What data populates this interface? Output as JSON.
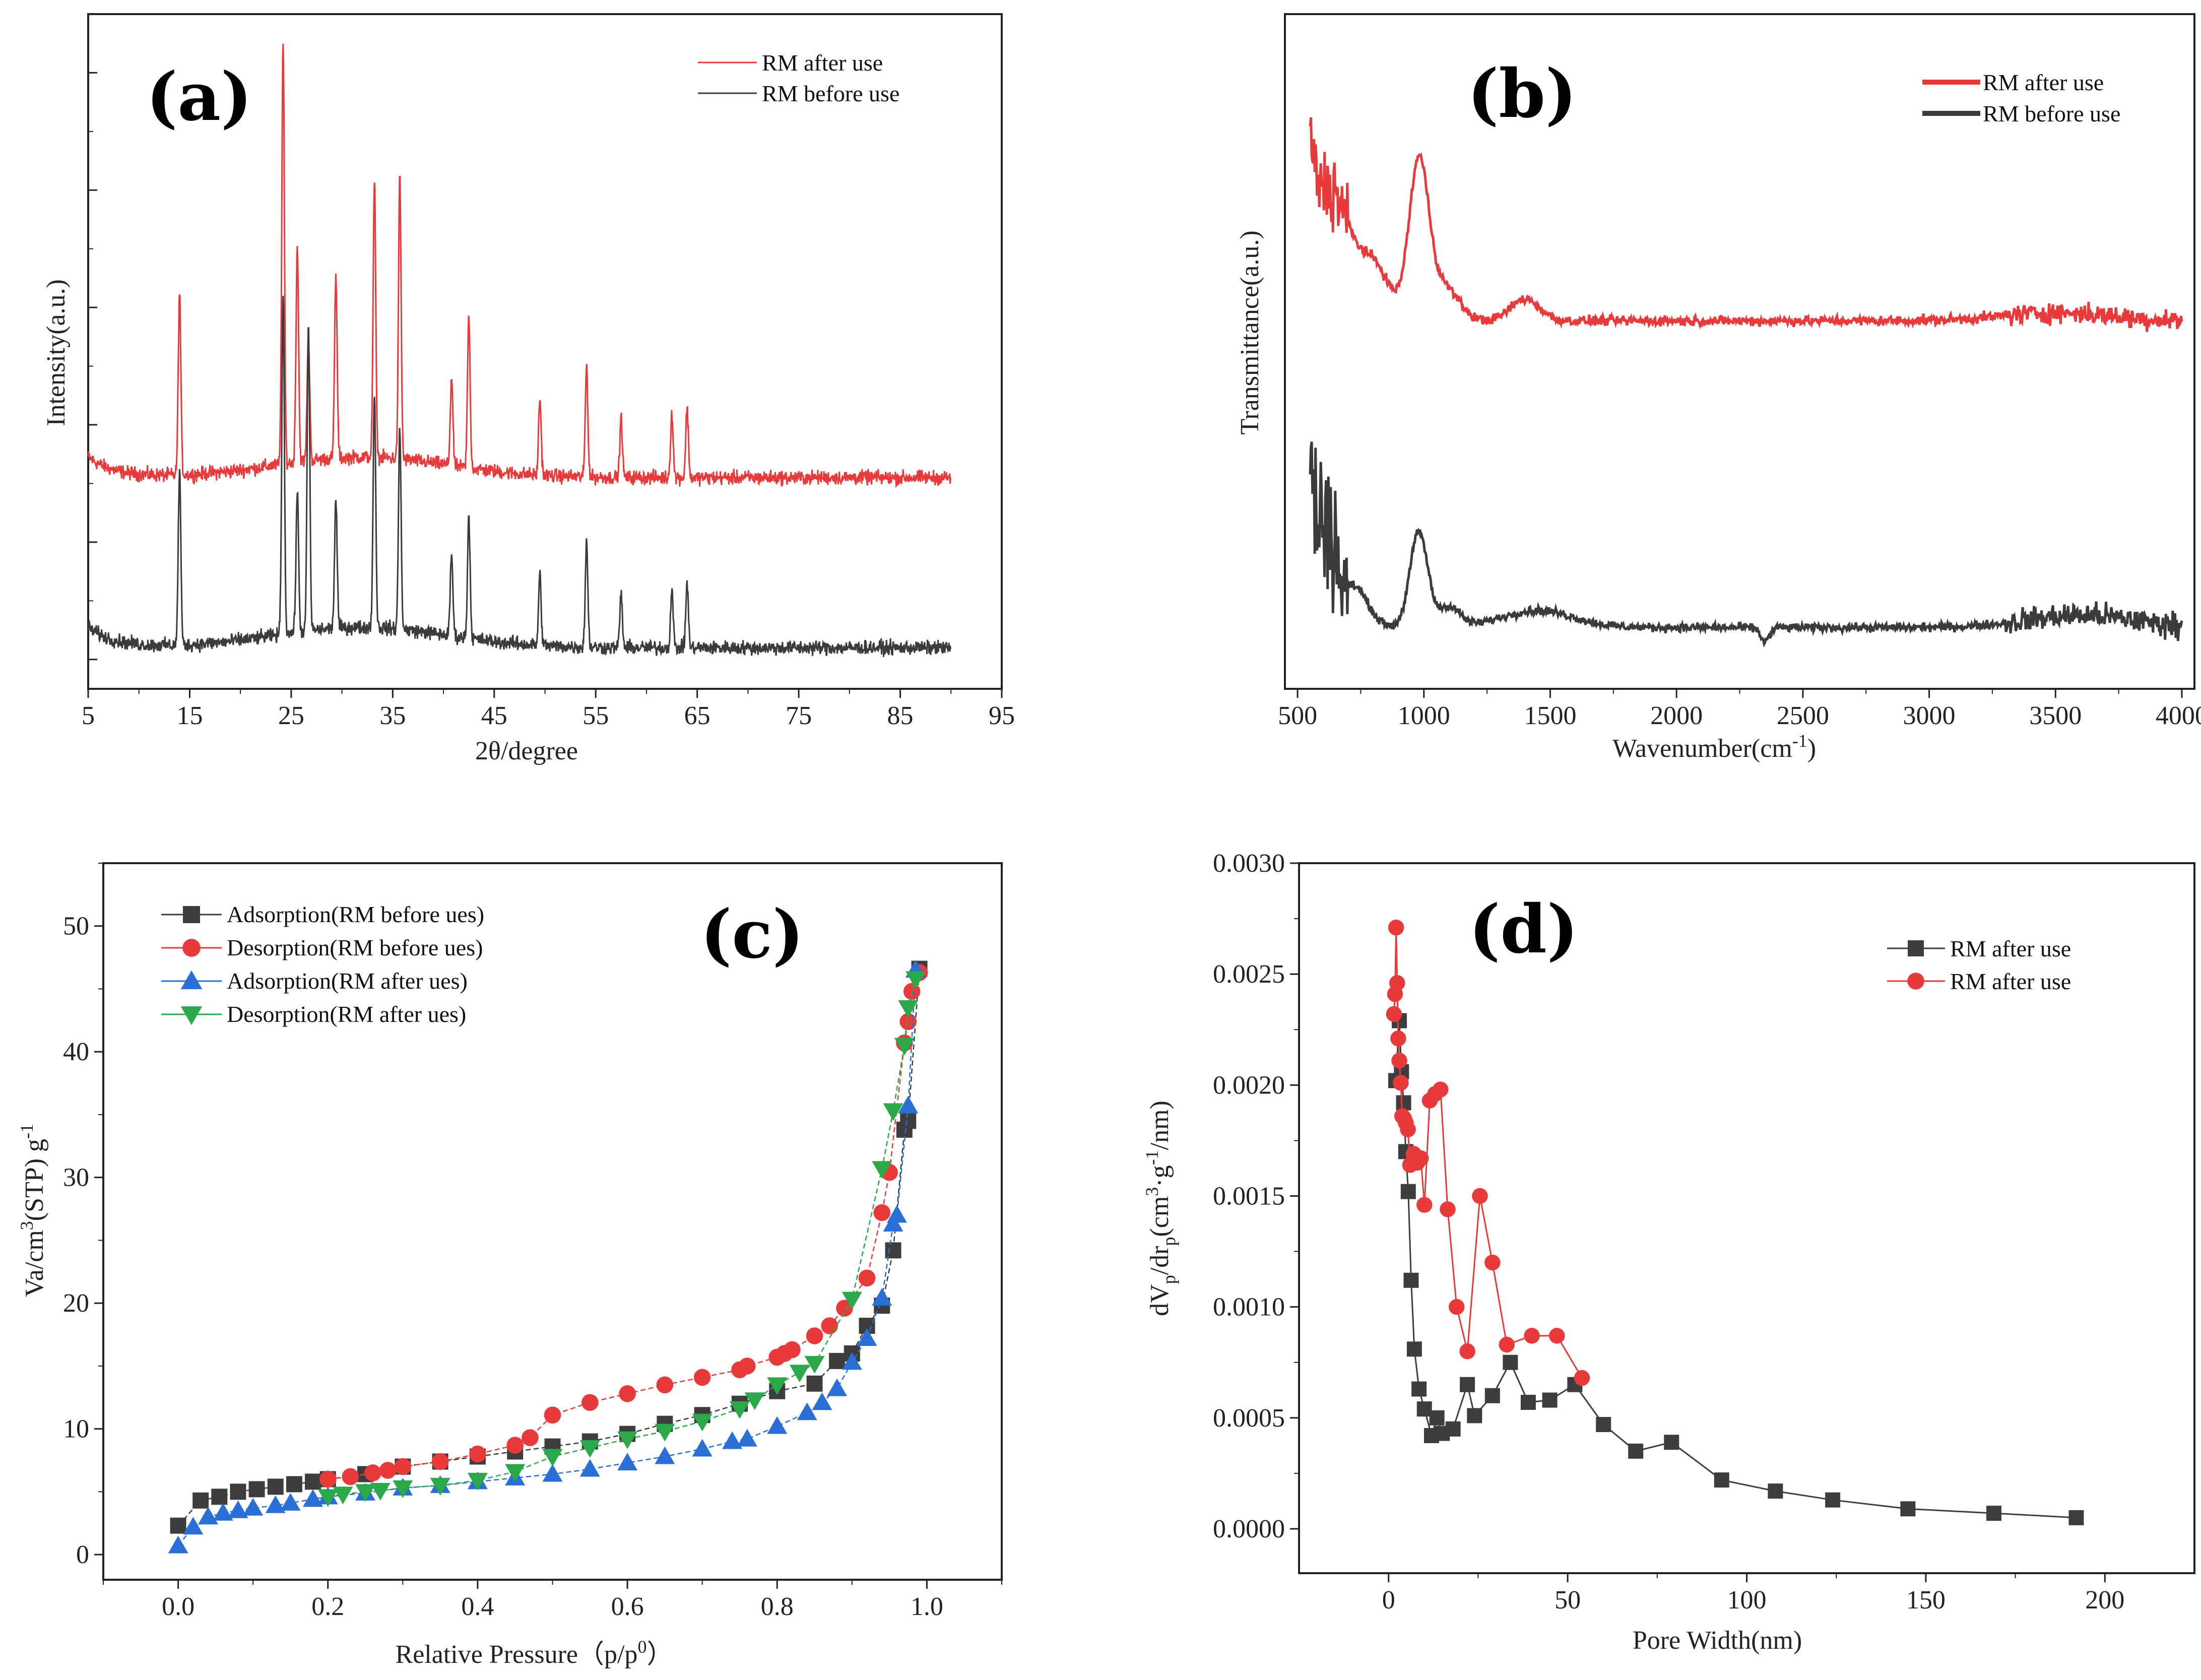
{
  "chart_data": [
    {
      "id": "a",
      "type": "line",
      "panel_label": "(a)",
      "xlabel": "2θ/degree",
      "ylabel": "Intensity(a.u.)",
      "xlim": [
        5,
        95
      ],
      "x_ticks": [
        "5",
        "15",
        "25",
        "35",
        "45",
        "55",
        "65",
        "75",
        "85",
        "95"
      ],
      "legend_position": "top-right",
      "grid": false,
      "series": [
        {
          "name": "RM after use",
          "color": "#e83a3a",
          "baseline": 3.1,
          "peaks": [
            [
              14,
              3.1
            ],
            [
              24.2,
              7.2
            ],
            [
              25.6,
              3.7
            ],
            [
              26.7,
              2.1
            ],
            [
              29.4,
              3.1
            ],
            [
              33.2,
              4.7
            ],
            [
              35.7,
              4.8
            ],
            [
              40.8,
              1.5
            ],
            [
              42.5,
              2.6
            ],
            [
              49.5,
              1.3
            ],
            [
              54.1,
              1.9
            ],
            [
              57.5,
              1.0
            ],
            [
              62.5,
              1.1
            ],
            [
              64,
              1.2
            ]
          ]
        },
        {
          "name": "RM before use",
          "color": "#3b3b3b",
          "baseline": 0.2,
          "peaks": [
            [
              14,
              3.0
            ],
            [
              24.2,
              5.8
            ],
            [
              25.6,
              2.4
            ],
            [
              26.7,
              5.2
            ],
            [
              29.4,
              2.2
            ],
            [
              33.2,
              4.0
            ],
            [
              35.7,
              3.4
            ],
            [
              40.8,
              1.4
            ],
            [
              42.5,
              2.1
            ],
            [
              49.5,
              1.2
            ],
            [
              54.1,
              1.8
            ],
            [
              57.5,
              0.9
            ],
            [
              62.5,
              1.0
            ],
            [
              64,
              1.1
            ]
          ]
        }
      ]
    },
    {
      "id": "b",
      "type": "line",
      "panel_label": "(b)",
      "xlabel": "Wavenumber(cm",
      "xlabel_sup": "-1",
      "xlabel_close": ")",
      "ylabel": "Transmittance(a.u.)",
      "xlim": [
        500,
        4000
      ],
      "x_ticks": [
        "500",
        "1000",
        "1500",
        "2000",
        "2500",
        "3000",
        "3500",
        "4000"
      ],
      "legend_position": "top-right",
      "grid": false,
      "series": [
        {
          "name": "RM after use",
          "color": "#e83a3a",
          "baseline": 5.0,
          "features": [
            [
              560,
              2.7
            ],
            [
              600,
              2.4
            ],
            [
              650,
              2.0
            ],
            [
              980,
              2.3
            ],
            [
              1400,
              0.3
            ]
          ]
        },
        {
          "name": "RM before use",
          "color": "#3b3b3b",
          "baseline": 0.5,
          "features": [
            [
              555,
              2.9
            ],
            [
              610,
              2.2
            ],
            [
              700,
              0.9
            ],
            [
              980,
              1.4
            ],
            [
              1400,
              0.2
            ]
          ]
        }
      ]
    },
    {
      "id": "c",
      "type": "scatter",
      "panel_label": "(c)",
      "xlabel": "Relative Pressure（p/p",
      "xlabel_sup": "0",
      "xlabel_close": "）",
      "ylabel": "Va/cm",
      "ylabel_sup": "3",
      "ylabel_mid": "(STP) g",
      "ylabel_sup2": "-1",
      "xlim": [
        -0.1,
        1.1
      ],
      "ylim": [
        -2,
        55
      ],
      "x_ticks": [
        "0.0",
        "0.2",
        "0.4",
        "0.6",
        "0.8",
        "1.0"
      ],
      "y_ticks": [
        "0",
        "10",
        "20",
        "30",
        "40",
        "50"
      ],
      "legend_position": "top-left",
      "grid": false,
      "series": [
        {
          "name": "Adsorption(RM before ues)",
          "color": "#3d3d3d",
          "marker": "square",
          "x": [
            0.0,
            0.03,
            0.055,
            0.08,
            0.105,
            0.13,
            0.155,
            0.18,
            0.2,
            0.25,
            0.3,
            0.35,
            0.4,
            0.45,
            0.5,
            0.55,
            0.6,
            0.65,
            0.7,
            0.75,
            0.8,
            0.85,
            0.88,
            0.9,
            0.92,
            0.94,
            0.955,
            0.97,
            0.975,
            0.99
          ],
          "y": [
            2.3,
            4.3,
            4.6,
            5.0,
            5.2,
            5.4,
            5.6,
            5.8,
            6.0,
            6.4,
            7.0,
            7.4,
            7.8,
            8.2,
            8.6,
            9.0,
            9.6,
            10.4,
            11.1,
            12.0,
            13.0,
            13.6,
            15.4,
            16.0,
            18.2,
            19.8,
            24.2,
            33.8,
            34.5,
            46.6
          ]
        },
        {
          "name": "Desorption(RM before ues)",
          "color": "#e83a3a",
          "marker": "circle",
          "x": [
            0.2,
            0.23,
            0.26,
            0.28,
            0.3,
            0.35,
            0.4,
            0.45,
            0.47,
            0.5,
            0.55,
            0.6,
            0.65,
            0.7,
            0.75,
            0.76,
            0.8,
            0.81,
            0.82,
            0.85,
            0.87,
            0.89,
            0.92,
            0.94,
            0.95,
            0.97,
            0.975,
            0.98,
            0.99
          ],
          "y": [
            6.0,
            6.2,
            6.5,
            6.7,
            7.0,
            7.4,
            8.0,
            8.7,
            9.3,
            11.1,
            12.1,
            12.8,
            13.5,
            14.1,
            14.7,
            15.0,
            15.7,
            16.0,
            16.3,
            17.4,
            18.2,
            19.6,
            22.0,
            27.2,
            30.4,
            40.7,
            42.4,
            44.8,
            46.3
          ]
        },
        {
          "name": "Adsorption(RM after ues)",
          "color": "#2a6fd6",
          "marker": "triangle-up",
          "x": [
            0.0,
            0.02,
            0.04,
            0.06,
            0.08,
            0.1,
            0.13,
            0.15,
            0.18,
            0.2,
            0.25,
            0.3,
            0.35,
            0.4,
            0.45,
            0.5,
            0.55,
            0.6,
            0.65,
            0.7,
            0.74,
            0.76,
            0.8,
            0.84,
            0.86,
            0.88,
            0.9,
            0.92,
            0.94,
            0.955,
            0.96,
            0.975,
            0.985
          ],
          "y": [
            0.7,
            2.2,
            3.0,
            3.3,
            3.5,
            3.7,
            3.9,
            4.1,
            4.4,
            4.6,
            4.9,
            5.3,
            5.5,
            5.8,
            6.1,
            6.4,
            6.8,
            7.3,
            7.8,
            8.4,
            9.0,
            9.2,
            10.2,
            11.3,
            12.1,
            13.2,
            15.3,
            17.2,
            20.4,
            26.3,
            27.0,
            35.7,
            46.5
          ]
        },
        {
          "name": "Desorption(RM after ues)",
          "color": "#2aa84a",
          "marker": "triangle-down",
          "x": [
            0.2,
            0.22,
            0.25,
            0.27,
            0.3,
            0.35,
            0.4,
            0.45,
            0.5,
            0.55,
            0.6,
            0.65,
            0.7,
            0.75,
            0.77,
            0.8,
            0.83,
            0.85,
            0.9,
            0.94,
            0.955,
            0.97,
            0.975,
            0.985
          ],
          "y": [
            4.6,
            4.8,
            5.0,
            5.1,
            5.3,
            5.5,
            5.9,
            6.6,
            7.8,
            8.5,
            9.2,
            9.8,
            10.6,
            11.6,
            12.3,
            13.5,
            14.5,
            15.2,
            20.3,
            30.7,
            35.3,
            40.5,
            43.5,
            45.8
          ]
        }
      ]
    },
    {
      "id": "d",
      "type": "line",
      "panel_label": "(d)",
      "xlabel": "Pore Width(nm)",
      "ylabel": "dV",
      "ylabel_sub": "p",
      "ylabel_mid": "/dr",
      "ylabel_sub2": "p",
      "ylabel_mid2": "(cm",
      "ylabel_sup": "3",
      "ylabel_mid3": "·g",
      "ylabel_sup2": "-1",
      "ylabel_end": "/nm)",
      "xlim": [
        -25,
        225
      ],
      "ylim": [
        -0.0002,
        0.003
      ],
      "x_ticks": [
        "0",
        "50",
        "100",
        "150",
        "200"
      ],
      "y_ticks": [
        "0.0000",
        "0.0005",
        "0.0010",
        "0.0015",
        "0.0020",
        "0.0025",
        "0.0030"
      ],
      "legend_position": "top-right",
      "grid": false,
      "series": [
        {
          "name": "RM after use",
          "color": "#3d3d3d",
          "marker": "square",
          "x": [
            2,
            3,
            3.6,
            4.2,
            4.8,
            5.5,
            6.3,
            7.2,
            8.5,
            10,
            12,
            13.5,
            15,
            18,
            22,
            24,
            29,
            34,
            39,
            45,
            52,
            60,
            69,
            79,
            93,
            108,
            124,
            145,
            169,
            192
          ],
          "y": [
            0.00202,
            0.00229,
            0.00206,
            0.00192,
            0.0017,
            0.00152,
            0.00112,
            0.00081,
            0.00063,
            0.00054,
            0.00042,
            0.0005,
            0.00043,
            0.00045,
            0.00065,
            0.00051,
            0.0006,
            0.00075,
            0.00057,
            0.00058,
            0.00065,
            0.00047,
            0.00035,
            0.00039,
            0.00022,
            0.00017,
            0.00013,
            9e-05,
            7e-05,
            5e-05
          ]
        },
        {
          "name": "RM after use",
          "color": "#e83a3a",
          "marker": "circle",
          "x": [
            1.5,
            1.8,
            2.1,
            2.4,
            2.7,
            3.0,
            3.4,
            3.8,
            4.3,
            4.8,
            5.4,
            6.0,
            7.0,
            8.0,
            9.0,
            10.0,
            11.5,
            13.0,
            14.5,
            16.5,
            19,
            22,
            25.5,
            29,
            33,
            40,
            47,
            54
          ],
          "y": [
            0.00232,
            0.00241,
            0.00271,
            0.00246,
            0.00221,
            0.00211,
            0.00201,
            0.00186,
            0.00185,
            0.00183,
            0.0018,
            0.00164,
            0.00169,
            0.00165,
            0.00167,
            0.00146,
            0.00193,
            0.00196,
            0.00198,
            0.00144,
            0.001,
            0.0008,
            0.0015,
            0.0012,
            0.00083,
            0.00087,
            0.00087,
            0.00068
          ]
        }
      ]
    }
  ]
}
